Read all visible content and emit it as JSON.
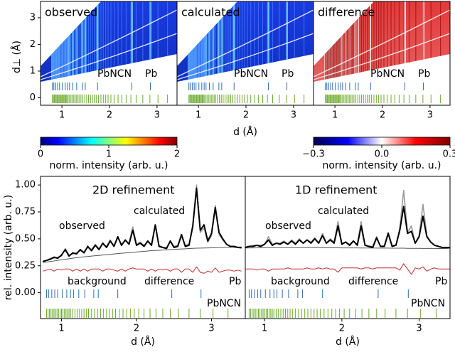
{
  "reflections": [
    {
      "name": "Pb",
      "color": "#2e6db4",
      "d": [
        0.8,
        0.83,
        0.87,
        0.91,
        0.95,
        1.01,
        1.07,
        1.12,
        1.16,
        1.23,
        1.31,
        1.43,
        1.49,
        1.75,
        2.47,
        2.86
      ]
    },
    {
      "name": "PbNCN",
      "color": "#6aaa2a",
      "d": [
        0.8,
        0.82,
        0.84,
        0.86,
        0.88,
        0.9,
        0.92,
        0.94,
        0.96,
        0.98,
        1.0,
        1.02,
        1.04,
        1.06,
        1.08,
        1.1,
        1.12,
        1.15,
        1.18,
        1.21,
        1.24,
        1.27,
        1.3,
        1.33,
        1.36,
        1.4,
        1.44,
        1.48,
        1.52,
        1.56,
        1.6,
        1.64,
        1.68,
        1.72,
        1.77,
        1.82,
        1.87,
        1.92,
        1.97,
        2.03,
        2.1,
        2.18,
        2.26,
        2.35,
        2.45,
        2.56,
        2.7,
        2.85,
        3.02,
        3.22
      ]
    }
  ],
  "chart_data": [
    {
      "type": "heatmap",
      "title": "observed",
      "colormap": "jet",
      "xlim": [
        0.55,
        3.42
      ],
      "xticks": [
        1,
        2,
        3
      ],
      "ylim": [
        -0.28,
        3.61
      ],
      "yticks": [
        0,
        1,
        2,
        3
      ],
      "xlabel": "d (Å)",
      "ylabel": "d⊥ (Å)"
    },
    {
      "type": "heatmap",
      "title": "calculated",
      "colormap": "jet",
      "xlim": [
        0.55,
        3.42
      ],
      "xticks": [
        1,
        2,
        3
      ],
      "ylim": [
        -0.28,
        3.61
      ]
    },
    {
      "type": "heatmap",
      "title": "difference",
      "colormap": "seismic",
      "xlim": [
        0.55,
        3.42
      ],
      "xticks": [
        1,
        2,
        3
      ],
      "ylim": [
        -0.28,
        3.61
      ]
    },
    {
      "type": "colorbar",
      "colormap": "jet",
      "xlim": [
        0,
        2
      ],
      "xticks": [
        0,
        1,
        2
      ],
      "xlabel": "norm. intensity (arb. u.)"
    },
    {
      "type": "colorbar",
      "colormap": "seismic",
      "xlim": [
        -0.3,
        0.3
      ],
      "xticks": [
        {
          "value": -0.3,
          "label": "−0.3"
        },
        {
          "value": 0,
          "label": "0.0"
        },
        0.3
      ],
      "xlabel": "norm. intensity (arb. u.)"
    },
    {
      "type": "line",
      "title": "2D refinement",
      "xlim": [
        0.72,
        3.45
      ],
      "xticks": [
        1,
        2,
        3
      ],
      "ylim": [
        -0.24,
        1.08
      ],
      "yticks": [
        {
          "value": 0,
          "label": "0.00"
        },
        {
          "value": 0.25,
          "label": "0.25"
        },
        {
          "value": 0.5,
          "label": "0.50"
        },
        {
          "value": 0.75,
          "label": "0.75"
        },
        {
          "value": 1,
          "label": "1.00"
        }
      ],
      "xlabel": "d (Å)",
      "ylabel": "rel. intensity (arb. u.)",
      "x": [
        0.75,
        0.8,
        0.85,
        0.9,
        0.95,
        1.0,
        1.05,
        1.1,
        1.15,
        1.2,
        1.25,
        1.3,
        1.35,
        1.4,
        1.45,
        1.5,
        1.55,
        1.6,
        1.65,
        1.7,
        1.75,
        1.8,
        1.85,
        1.9,
        1.95,
        2.0,
        2.05,
        2.1,
        2.15,
        2.2,
        2.25,
        2.3,
        2.35,
        2.4,
        2.45,
        2.5,
        2.55,
        2.6,
        2.65,
        2.7,
        2.75,
        2.8,
        2.85,
        2.9,
        2.95,
        3.0,
        3.05,
        3.1,
        3.15,
        3.2,
        3.25,
        3.3,
        3.35,
        3.4
      ],
      "series": [
        {
          "name": "observed",
          "color": "#9a9a9a",
          "values": [
            0.28,
            0.3,
            0.32,
            0.32,
            0.33,
            0.34,
            0.41,
            0.35,
            0.36,
            0.37,
            0.39,
            0.38,
            0.42,
            0.4,
            0.45,
            0.41,
            0.45,
            0.43,
            0.49,
            0.43,
            0.51,
            0.45,
            0.48,
            0.46,
            0.61,
            0.45,
            0.47,
            0.44,
            0.47,
            0.45,
            0.62,
            0.44,
            0.42,
            0.42,
            0.47,
            0.43,
            0.44,
            0.52,
            0.44,
            0.45,
            0.6,
            1.0,
            0.56,
            0.6,
            0.47,
            0.53,
            0.81,
            0.54,
            0.49,
            0.45,
            0.43,
            0.42,
            0.42,
            0.41
          ]
        },
        {
          "name": "calculated",
          "color": "#000000",
          "values": [
            0.29,
            0.3,
            0.31,
            0.33,
            0.32,
            0.35,
            0.4,
            0.34,
            0.37,
            0.36,
            0.4,
            0.37,
            0.43,
            0.39,
            0.44,
            0.4,
            0.46,
            0.42,
            0.48,
            0.43,
            0.52,
            0.44,
            0.49,
            0.45,
            0.58,
            0.44,
            0.46,
            0.43,
            0.48,
            0.44,
            0.63,
            0.43,
            0.42,
            0.41,
            0.48,
            0.42,
            0.43,
            0.54,
            0.43,
            0.44,
            0.62,
            0.97,
            0.58,
            0.63,
            0.48,
            0.55,
            0.79,
            0.56,
            0.5,
            0.45,
            0.43,
            0.43,
            0.42,
            0.42
          ]
        },
        {
          "name": "background",
          "color": "#555555",
          "values": [
            0.28,
            0.285,
            0.29,
            0.295,
            0.3,
            0.305,
            0.31,
            0.315,
            0.32,
            0.325,
            0.33,
            0.333,
            0.336,
            0.34,
            0.343,
            0.346,
            0.35,
            0.353,
            0.356,
            0.36,
            0.363,
            0.366,
            0.369,
            0.372,
            0.375,
            0.378,
            0.381,
            0.384,
            0.387,
            0.39,
            0.392,
            0.394,
            0.396,
            0.398,
            0.4,
            0.402,
            0.404,
            0.406,
            0.408,
            0.41,
            0.412,
            0.413,
            0.414,
            0.415,
            0.416,
            0.417,
            0.418,
            0.419,
            0.42,
            0.421,
            0.422,
            0.423,
            0.424,
            0.425
          ]
        },
        {
          "name": "difference",
          "color": "#c0282a",
          "values": [
            0.2,
            0.21,
            0.22,
            0.2,
            0.22,
            0.21,
            0.22,
            0.22,
            0.2,
            0.22,
            0.2,
            0.22,
            0.2,
            0.22,
            0.22,
            0.22,
            0.2,
            0.22,
            0.22,
            0.21,
            0.2,
            0.22,
            0.2,
            0.22,
            0.23,
            0.22,
            0.22,
            0.22,
            0.2,
            0.22,
            0.2,
            0.22,
            0.21,
            0.22,
            0.2,
            0.22,
            0.22,
            0.19,
            0.22,
            0.22,
            0.19,
            0.24,
            0.19,
            0.18,
            0.2,
            0.19,
            0.23,
            0.19,
            0.2,
            0.21,
            0.21,
            0.2,
            0.21,
            0.2
          ]
        }
      ]
    },
    {
      "type": "line",
      "title": "1D refinement",
      "xlim": [
        0.75,
        3.4
      ],
      "xticks": [
        1,
        2,
        3
      ],
      "ylim": [
        -0.24,
        1.08
      ],
      "xlabel": "d (Å)",
      "x": [
        0.75,
        0.8,
        0.85,
        0.9,
        0.95,
        1.0,
        1.05,
        1.1,
        1.15,
        1.2,
        1.25,
        1.3,
        1.35,
        1.4,
        1.45,
        1.5,
        1.55,
        1.6,
        1.65,
        1.7,
        1.75,
        1.8,
        1.85,
        1.9,
        1.95,
        2.0,
        2.05,
        2.1,
        2.15,
        2.2,
        2.25,
        2.3,
        2.35,
        2.4,
        2.45,
        2.5,
        2.55,
        2.6,
        2.65,
        2.7,
        2.75,
        2.8,
        2.85,
        2.9,
        2.95,
        3.0,
        3.05,
        3.1,
        3.15,
        3.2,
        3.25,
        3.3,
        3.35,
        3.4
      ],
      "series": [
        {
          "name": "observed",
          "color": "#9a9a9a",
          "values": [
            0.42,
            0.43,
            0.44,
            0.44,
            0.44,
            0.45,
            0.52,
            0.45,
            0.46,
            0.46,
            0.48,
            0.45,
            0.49,
            0.46,
            0.5,
            0.46,
            0.49,
            0.47,
            0.51,
            0.46,
            0.55,
            0.46,
            0.5,
            0.47,
            0.66,
            0.46,
            0.47,
            0.45,
            0.48,
            0.45,
            0.66,
            0.44,
            0.43,
            0.43,
            0.52,
            0.43,
            0.44,
            0.56,
            0.44,
            0.44,
            0.6,
            0.95,
            0.56,
            0.62,
            0.46,
            0.53,
            0.82,
            0.53,
            0.47,
            0.44,
            0.43,
            0.42,
            0.42,
            0.41
          ]
        },
        {
          "name": "calculated",
          "color": "#000000",
          "values": [
            0.42,
            0.43,
            0.43,
            0.44,
            0.43,
            0.45,
            0.49,
            0.44,
            0.46,
            0.45,
            0.47,
            0.45,
            0.48,
            0.45,
            0.49,
            0.46,
            0.49,
            0.46,
            0.5,
            0.46,
            0.53,
            0.46,
            0.49,
            0.46,
            0.62,
            0.45,
            0.47,
            0.44,
            0.48,
            0.44,
            0.62,
            0.44,
            0.43,
            0.42,
            0.51,
            0.43,
            0.43,
            0.55,
            0.43,
            0.44,
            0.58,
            0.8,
            0.55,
            0.57,
            0.46,
            0.52,
            0.71,
            0.52,
            0.47,
            0.44,
            0.43,
            0.42,
            0.42,
            0.42
          ]
        },
        {
          "name": "background",
          "color": "#555555",
          "values": [
            0.415,
            0.416,
            0.416,
            0.417,
            0.417,
            0.417,
            0.418,
            0.418,
            0.418,
            0.418,
            0.418,
            0.418,
            0.418,
            0.418,
            0.418,
            0.418,
            0.418,
            0.418,
            0.418,
            0.418,
            0.417,
            0.417,
            0.417,
            0.417,
            0.417,
            0.416,
            0.416,
            0.416,
            0.416,
            0.416,
            0.415,
            0.415,
            0.415,
            0.415,
            0.414,
            0.414,
            0.414,
            0.414,
            0.413,
            0.413,
            0.413,
            0.413,
            0.412,
            0.412,
            0.412,
            0.412,
            0.411,
            0.411,
            0.411,
            0.411,
            0.41,
            0.41,
            0.41,
            0.41
          ]
        },
        {
          "name": "difference",
          "color": "#c0282a",
          "values": [
            0.22,
            0.22,
            0.22,
            0.21,
            0.22,
            0.22,
            0.2,
            0.22,
            0.22,
            0.22,
            0.22,
            0.23,
            0.22,
            0.22,
            0.22,
            0.22,
            0.23,
            0.22,
            0.22,
            0.23,
            0.22,
            0.23,
            0.22,
            0.22,
            0.19,
            0.23,
            0.23,
            0.23,
            0.23,
            0.23,
            0.22,
            0.23,
            0.23,
            0.22,
            0.23,
            0.23,
            0.23,
            0.23,
            0.23,
            0.23,
            0.21,
            0.27,
            0.22,
            0.17,
            0.23,
            0.22,
            0.24,
            0.2,
            0.22,
            0.23,
            0.22,
            0.22,
            0.22,
            0.22
          ]
        }
      ]
    }
  ]
}
